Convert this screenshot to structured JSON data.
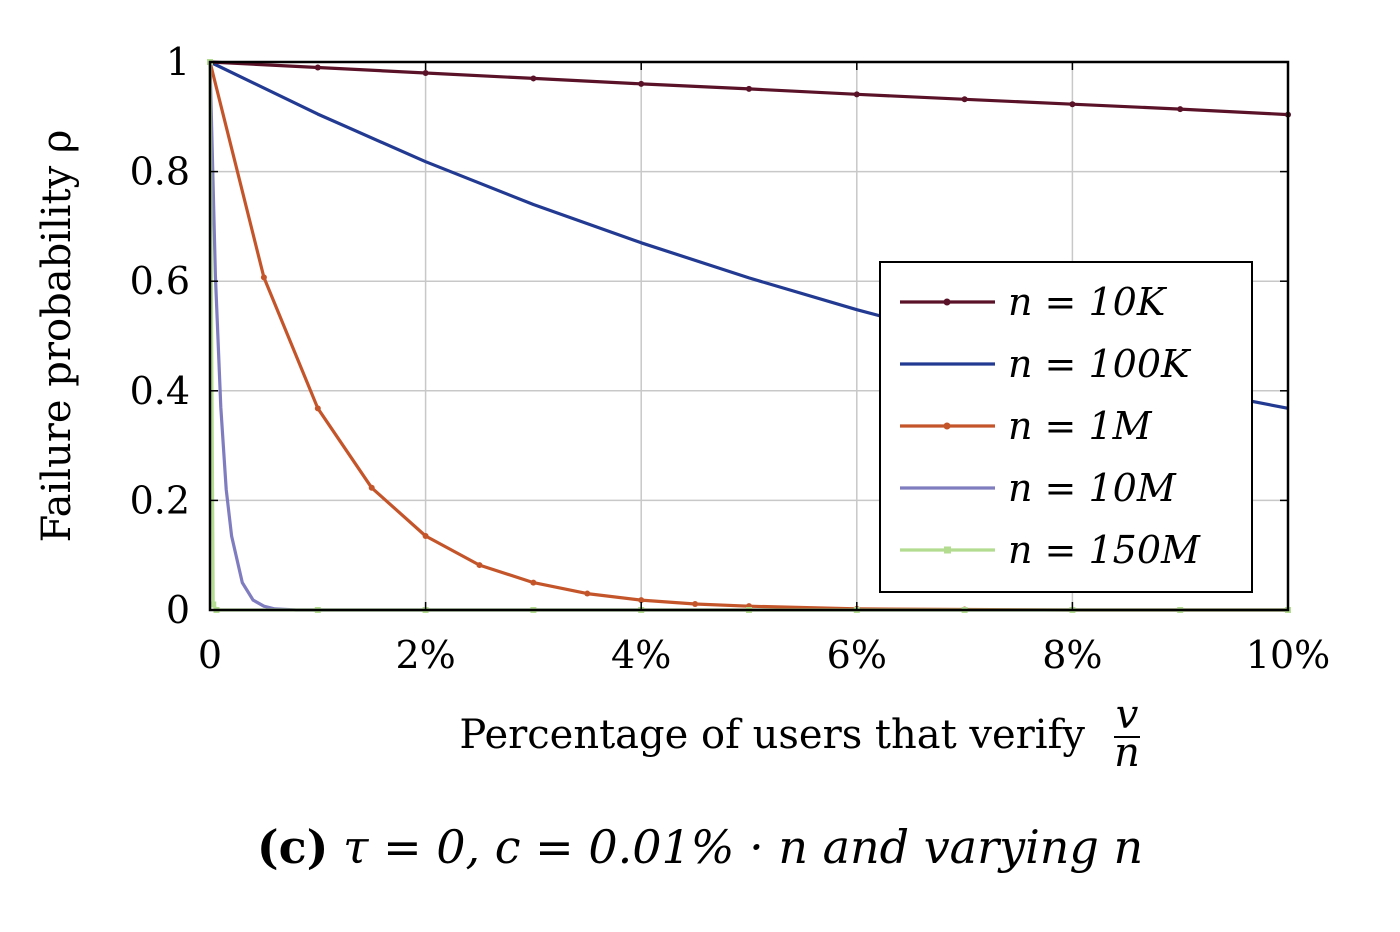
{
  "chart_data": {
    "type": "line",
    "xlabel": "Percentage of users that verify",
    "xlabel_fraction": {
      "numerator": "v",
      "denominator": "n"
    },
    "ylabel": "Failure probability ρ",
    "xlim": [
      0,
      10
    ],
    "ylim": [
      0,
      1
    ],
    "x_ticks": [
      {
        "value": 0,
        "label": "0"
      },
      {
        "value": 2,
        "label": "2%"
      },
      {
        "value": 4,
        "label": "4%"
      },
      {
        "value": 6,
        "label": "6%"
      },
      {
        "value": 8,
        "label": "8%"
      },
      {
        "value": 10,
        "label": "10%"
      }
    ],
    "y_ticks": [
      {
        "value": 0,
        "label": "0"
      },
      {
        "value": 0.2,
        "label": "0.2"
      },
      {
        "value": 0.4,
        "label": "0.4"
      },
      {
        "value": 0.6,
        "label": "0.6"
      },
      {
        "value": 0.8,
        "label": "0.8"
      },
      {
        "value": 1,
        "label": "1"
      }
    ],
    "grid": true,
    "legend_position": "right",
    "series": [
      {
        "name": "n = 10K",
        "color": "#5a1228",
        "marker": "dot",
        "x": [
          0,
          1,
          2,
          3,
          4,
          5,
          6,
          7,
          8,
          9,
          10
        ],
        "y": [
          1.0,
          0.99,
          0.98,
          0.97,
          0.96,
          0.951,
          0.941,
          0.932,
          0.923,
          0.914,
          0.904
        ]
      },
      {
        "name": "n = 100K",
        "color": "#233a92",
        "marker": "none",
        "x": [
          0,
          1,
          2,
          3,
          4,
          5,
          6,
          7,
          8,
          9,
          10
        ],
        "y": [
          1.0,
          0.905,
          0.818,
          0.74,
          0.67,
          0.606,
          0.548,
          0.496,
          0.449,
          0.406,
          0.368
        ]
      },
      {
        "name": "n = 1M",
        "color": "#c4552a",
        "marker": "dot",
        "x": [
          0,
          0.5,
          1,
          1.5,
          2,
          2.5,
          3,
          3.5,
          4,
          4.5,
          5,
          6,
          7,
          8,
          9,
          10
        ],
        "y": [
          1.0,
          0.607,
          0.368,
          0.223,
          0.135,
          0.082,
          0.05,
          0.03,
          0.018,
          0.011,
          0.007,
          0.002,
          0.001,
          0.0,
          0.0,
          0.0
        ]
      },
      {
        "name": "n = 10M",
        "color": "#7f7dbf",
        "marker": "none",
        "x": [
          0,
          0.05,
          0.1,
          0.15,
          0.2,
          0.3,
          0.4,
          0.5,
          0.6,
          0.8,
          1,
          10
        ],
        "y": [
          1.0,
          0.61,
          0.37,
          0.22,
          0.135,
          0.05,
          0.018,
          0.007,
          0.002,
          0.0,
          0.0,
          0.0
        ]
      },
      {
        "name": "n = 150M",
        "color": "#b3dc91",
        "marker": "square",
        "x": [
          0,
          0.03,
          0.06,
          1,
          2,
          3,
          4,
          5,
          6,
          7,
          8,
          9,
          10
        ],
        "y": [
          1.0,
          0.01,
          0.0,
          0.0,
          0.0,
          0.0,
          0.0,
          0.0,
          0.0,
          0.0,
          0.0,
          0.0,
          0.0
        ]
      }
    ]
  },
  "caption": {
    "tag": "(c)",
    "text": "τ = 0, c = 0.01% · n and varying n"
  }
}
